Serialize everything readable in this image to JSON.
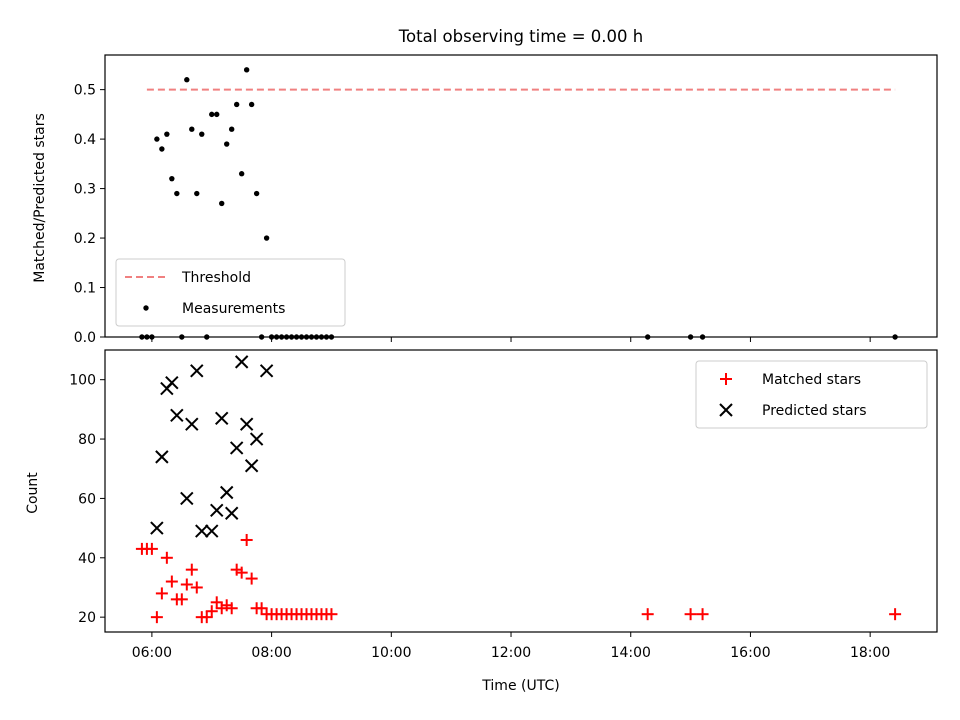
{
  "figure": {
    "title": "Total observing time = 0.00 h",
    "xlabel": "Time (UTC)"
  },
  "chart_data": [
    {
      "type": "scatter",
      "ylabel": "Matched/Predicted stars",
      "xlim": [
        "05:13",
        "19:07"
      ],
      "ylim": [
        0,
        0.57
      ],
      "yticks": [
        "0.0",
        "0.1",
        "0.2",
        "0.3",
        "0.4",
        "0.5"
      ],
      "xticks": [
        "06:00",
        "08:00",
        "10:00",
        "12:00",
        "14:00",
        "16:00",
        "18:00"
      ],
      "legend_position": "lower-left",
      "threshold": {
        "name": "Threshold",
        "value": 0.5,
        "x_start": "05:55",
        "x_end": "18:25",
        "color": "#f08080"
      },
      "series": [
        {
          "name": "Measurements",
          "color": "#000000",
          "points": [
            [
              "05:50",
              0
            ],
            [
              "05:55",
              0
            ],
            [
              "06:00",
              0
            ],
            [
              "06:05",
              0.4
            ],
            [
              "06:10",
              0.38
            ],
            [
              "06:15",
              0.41
            ],
            [
              "06:20",
              0.32
            ],
            [
              "06:25",
              0.29
            ],
            [
              "06:30",
              0
            ],
            [
              "06:35",
              0.52
            ],
            [
              "06:40",
              0.42
            ],
            [
              "06:45",
              0.29
            ],
            [
              "06:50",
              0.41
            ],
            [
              "06:55",
              0
            ],
            [
              "07:00",
              0.45
            ],
            [
              "07:05",
              0.45
            ],
            [
              "07:10",
              0.27
            ],
            [
              "07:15",
              0.39
            ],
            [
              "07:20",
              0.42
            ],
            [
              "07:25",
              0.47
            ],
            [
              "07:30",
              0.33
            ],
            [
              "07:35",
              0.54
            ],
            [
              "07:40",
              0.47
            ],
            [
              "07:45",
              0.29
            ],
            [
              "07:50",
              0
            ],
            [
              "07:55",
              0.2
            ],
            [
              "08:00",
              0
            ],
            [
              "08:05",
              0
            ],
            [
              "08:10",
              0
            ],
            [
              "08:15",
              0
            ],
            [
              "08:20",
              0
            ],
            [
              "08:25",
              0
            ],
            [
              "08:30",
              0
            ],
            [
              "08:35",
              0
            ],
            [
              "08:40",
              0
            ],
            [
              "08:45",
              0
            ],
            [
              "08:50",
              0
            ],
            [
              "08:55",
              0
            ],
            [
              "09:00",
              0
            ],
            [
              "14:17",
              0
            ],
            [
              "15:00",
              0
            ],
            [
              "15:12",
              0
            ],
            [
              "18:25",
              0
            ]
          ]
        }
      ]
    },
    {
      "type": "scatter",
      "ylabel": "Count",
      "xlim": [
        "05:13",
        "19:07"
      ],
      "ylim": [
        15,
        110
      ],
      "yticks": [
        "20",
        "40",
        "60",
        "80",
        "100"
      ],
      "xticks": [
        "06:00",
        "08:00",
        "10:00",
        "12:00",
        "14:00",
        "16:00",
        "18:00"
      ],
      "legend_position": "upper-right",
      "series": [
        {
          "name": "Matched stars",
          "marker": "plus",
          "color": "#ff0000",
          "points": [
            [
              "05:50",
              43
            ],
            [
              "05:55",
              43
            ],
            [
              "06:00",
              43
            ],
            [
              "06:05",
              20
            ],
            [
              "06:10",
              28
            ],
            [
              "06:15",
              40
            ],
            [
              "06:20",
              32
            ],
            [
              "06:25",
              26
            ],
            [
              "06:30",
              26
            ],
            [
              "06:35",
              31
            ],
            [
              "06:40",
              36
            ],
            [
              "06:45",
              30
            ],
            [
              "06:50",
              20
            ],
            [
              "06:55",
              20
            ],
            [
              "07:00",
              22
            ],
            [
              "07:05",
              25
            ],
            [
              "07:10",
              23
            ],
            [
              "07:15",
              24
            ],
            [
              "07:20",
              23
            ],
            [
              "07:25",
              36
            ],
            [
              "07:30",
              35
            ],
            [
              "07:35",
              46
            ],
            [
              "07:40",
              33
            ],
            [
              "07:45",
              23
            ],
            [
              "07:50",
              23
            ],
            [
              "07:55",
              21
            ],
            [
              "08:00",
              21
            ],
            [
              "08:05",
              21
            ],
            [
              "08:10",
              21
            ],
            [
              "08:15",
              21
            ],
            [
              "08:20",
              21
            ],
            [
              "08:25",
              21
            ],
            [
              "08:30",
              21
            ],
            [
              "08:35",
              21
            ],
            [
              "08:40",
              21
            ],
            [
              "08:45",
              21
            ],
            [
              "08:50",
              21
            ],
            [
              "08:55",
              21
            ],
            [
              "09:00",
              21
            ],
            [
              "14:17",
              21
            ],
            [
              "15:00",
              21
            ],
            [
              "15:12",
              21
            ],
            [
              "18:25",
              21
            ]
          ]
        },
        {
          "name": "Predicted stars",
          "marker": "x",
          "color": "#000000",
          "points": [
            [
              "06:05",
              50
            ],
            [
              "06:10",
              74
            ],
            [
              "06:15",
              97
            ],
            [
              "06:20",
              99
            ],
            [
              "06:25",
              88
            ],
            [
              "06:35",
              60
            ],
            [
              "06:40",
              85
            ],
            [
              "06:45",
              103
            ],
            [
              "06:50",
              49
            ],
            [
              "07:00",
              49
            ],
            [
              "07:05",
              56
            ],
            [
              "07:10",
              87
            ],
            [
              "07:15",
              62
            ],
            [
              "07:20",
              55
            ],
            [
              "07:25",
              77
            ],
            [
              "07:30",
              106
            ],
            [
              "07:35",
              85
            ],
            [
              "07:40",
              71
            ],
            [
              "07:45",
              80
            ],
            [
              "07:55",
              103
            ]
          ]
        }
      ]
    }
  ]
}
